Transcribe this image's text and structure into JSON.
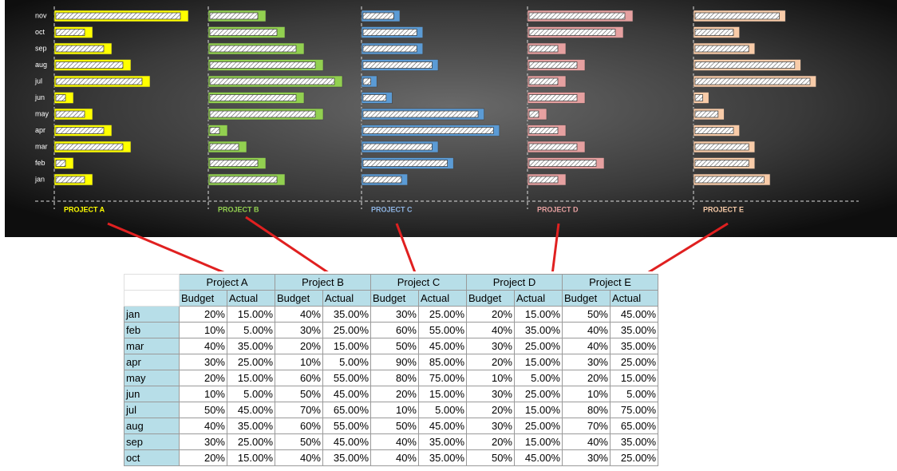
{
  "chart_data": [
    {
      "type": "bar",
      "title": "PROJECT A",
      "categories": [
        "jan",
        "feb",
        "mar",
        "apr",
        "may",
        "jun",
        "jul",
        "aug",
        "sep",
        "oct",
        "nov"
      ],
      "xlim": [
        0,
        80
      ],
      "label_color": "#ffff00",
      "series": [
        {
          "color": "#ffff00",
          "values": [
            20,
            10,
            40,
            30,
            20,
            10,
            50,
            40,
            30,
            20,
            70
          ]
        },
        {
          "color": "#ffffff",
          "values": [
            15,
            5,
            35,
            25,
            15,
            5,
            45,
            35,
            25,
            15,
            65
          ]
        }
      ]
    },
    {
      "type": "bar",
      "title": "PROJECT B",
      "categories": [
        "jan",
        "feb",
        "mar",
        "apr",
        "may",
        "jun",
        "jul",
        "aug",
        "sep",
        "oct",
        "nov"
      ],
      "xlim": [
        0,
        80
      ],
      "label_color": "#92d050",
      "series": [
        {
          "color": "#92d050",
          "values": [
            40,
            30,
            20,
            10,
            60,
            50,
            70,
            60,
            50,
            40,
            30
          ]
        },
        {
          "color": "#ffffff",
          "values": [
            35,
            25,
            15,
            5,
            55,
            45,
            65,
            55,
            45,
            35,
            25
          ]
        }
      ]
    },
    {
      "type": "bar",
      "title": "PROJECT C",
      "categories": [
        "jan",
        "feb",
        "mar",
        "apr",
        "may",
        "jun",
        "jul",
        "aug",
        "sep",
        "oct",
        "nov"
      ],
      "xlim": [
        0,
        100
      ],
      "label_color": "#8eb4e3",
      "series": [
        {
          "color": "#5b9bd5",
          "values": [
            30,
            60,
            50,
            90,
            80,
            20,
            10,
            50,
            40,
            40,
            25
          ]
        },
        {
          "color": "#ffffff",
          "values": [
            25,
            55,
            45,
            85,
            75,
            15,
            5,
            45,
            35,
            35,
            20
          ]
        }
      ]
    },
    {
      "type": "bar",
      "title": "PROJECT D",
      "categories": [
        "jan",
        "feb",
        "mar",
        "apr",
        "may",
        "jun",
        "jul",
        "aug",
        "sep",
        "oct",
        "nov"
      ],
      "xlim": [
        0,
        80
      ],
      "label_color": "#e6a0a0",
      "series": [
        {
          "color": "#e6a0a0",
          "values": [
            20,
            40,
            30,
            20,
            10,
            30,
            20,
            30,
            20,
            50,
            55
          ]
        },
        {
          "color": "#ffffff",
          "values": [
            15,
            35,
            25,
            15,
            5,
            25,
            15,
            25,
            15,
            45,
            50
          ]
        }
      ]
    },
    {
      "type": "bar",
      "title": "PROJECT E",
      "categories": [
        "jan",
        "feb",
        "mar",
        "apr",
        "may",
        "jun",
        "jul",
        "aug",
        "sep",
        "oct",
        "nov"
      ],
      "xlim": [
        0,
        100
      ],
      "label_color": "#f8cba8",
      "series": [
        {
          "color": "#f8cba8",
          "values": [
            50,
            40,
            40,
            30,
            20,
            10,
            80,
            70,
            40,
            30,
            60
          ]
        },
        {
          "color": "#ffffff",
          "values": [
            45,
            35,
            35,
            25,
            15,
            5,
            75,
            65,
            35,
            25,
            55
          ]
        }
      ]
    }
  ],
  "table": {
    "projects": [
      "Project A",
      "Project B",
      "Project C",
      "Project D",
      "Project E"
    ],
    "subheaders": [
      "Budget",
      "Actual",
      "Budget",
      "Actual",
      "Budget",
      "Actual",
      "Budget",
      "Actual",
      "Budget",
      "Actual"
    ],
    "rows": [
      [
        "jan",
        "20%",
        "15.00%",
        "40%",
        "35.00%",
        "30%",
        "25.00%",
        "20%",
        "15.00%",
        "50%",
        "45.00%"
      ],
      [
        "feb",
        "10%",
        "5.00%",
        "30%",
        "25.00%",
        "60%",
        "55.00%",
        "40%",
        "35.00%",
        "40%",
        "35.00%"
      ],
      [
        "mar",
        "40%",
        "35.00%",
        "20%",
        "15.00%",
        "50%",
        "45.00%",
        "30%",
        "25.00%",
        "40%",
        "35.00%"
      ],
      [
        "apr",
        "30%",
        "25.00%",
        "10%",
        "5.00%",
        "90%",
        "85.00%",
        "20%",
        "15.00%",
        "30%",
        "25.00%"
      ],
      [
        "may",
        "20%",
        "15.00%",
        "60%",
        "55.00%",
        "80%",
        "75.00%",
        "10%",
        "5.00%",
        "20%",
        "15.00%"
      ],
      [
        "jun",
        "10%",
        "5.00%",
        "50%",
        "45.00%",
        "20%",
        "15.00%",
        "30%",
        "25.00%",
        "10%",
        "5.00%"
      ],
      [
        "jul",
        "50%",
        "45.00%",
        "70%",
        "65.00%",
        "10%",
        "5.00%",
        "20%",
        "15.00%",
        "80%",
        "75.00%"
      ],
      [
        "aug",
        "40%",
        "35.00%",
        "60%",
        "55.00%",
        "50%",
        "45.00%",
        "30%",
        "25.00%",
        "70%",
        "65.00%"
      ],
      [
        "sep",
        "30%",
        "25.00%",
        "50%",
        "45.00%",
        "40%",
        "35.00%",
        "20%",
        "15.00%",
        "40%",
        "35.00%"
      ],
      [
        "oct",
        "20%",
        "15.00%",
        "40%",
        "35.00%",
        "40%",
        "35.00%",
        "50%",
        "45.00%",
        "30%",
        "25.00%"
      ]
    ]
  }
}
